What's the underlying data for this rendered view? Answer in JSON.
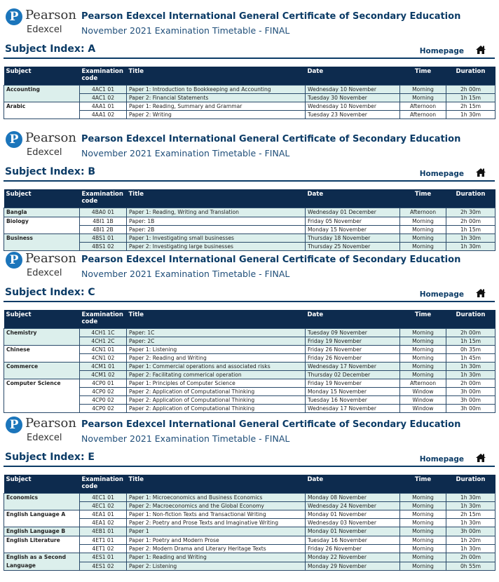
{
  "header": {
    "brand": "Pearson",
    "sub": "Edexcel",
    "title": "Pearson Edexcel International General Certificate of Secondary Education",
    "subtitle": "November 2021 Examination Timetable - FINAL",
    "homepage": "Homepage",
    "columns": [
      "Subject",
      "Examination code",
      "Title",
      "Date",
      "Time",
      "Duration"
    ]
  },
  "sections": [
    {
      "index": "Subject Index: A",
      "groups": [
        {
          "subject": "Accounting",
          "papers": [
            [
              "4AC1 01",
              "Paper 1: Introduction to Bookkeeping and Accounting",
              "Wednesday 10 November",
              "Morning",
              "2h 00m"
            ],
            [
              "4AC1 02",
              "Paper 2: Financial Statements",
              "Tuesday 30 November",
              "Morning",
              "1h 15m"
            ]
          ]
        },
        {
          "subject": "Arabic",
          "papers": [
            [
              "4AA1 01",
              "Paper 1: Reading, Summary and Grammar",
              "Wednesday 10 November",
              "Afternoon",
              "2h 15m"
            ],
            [
              "4AA1 02",
              "Paper 2: Writing",
              "Tuesday 23 November",
              "Afternoon",
              "1h 30m"
            ]
          ]
        }
      ]
    },
    {
      "index": "Subject Index: B",
      "groups": [
        {
          "subject": "Bangla",
          "papers": [
            [
              "4BA0 01",
              "Paper 1: Reading, Writing and Translation",
              "Wednesday 01 December",
              "Afternoon",
              "2h 30m"
            ]
          ]
        },
        {
          "subject": "Biology",
          "papers": [
            [
              "4BI1 1B",
              "Paper: 1B",
              "Friday 05 November",
              "Morning",
              "2h 00m"
            ],
            [
              "4BI1 2B",
              "Paper: 2B",
              "Monday 15 November",
              "Morning",
              "1h 15m"
            ]
          ]
        },
        {
          "subject": "Business",
          "papers": [
            [
              "4BS1 01",
              "Paper 1: Investigating small businesses",
              "Thursday 18 November",
              "Morning",
              "1h 30m"
            ],
            [
              "4BS1 02",
              "Paper 2: Investigating large businesses",
              "Thursday 25 November",
              "Morning",
              "1h 30m"
            ]
          ]
        }
      ]
    },
    {
      "index": "Subject Index: C",
      "groups": [
        {
          "subject": "Chemistry",
          "papers": [
            [
              "4CH1 1C",
              "Paper: 1C",
              "Tuesday 09 November",
              "Morning",
              "2h 00m"
            ],
            [
              "4CH1 2C",
              "Paper: 2C",
              "Friday 19 November",
              "Morning",
              "1h 15m"
            ]
          ]
        },
        {
          "subject": "Chinese",
          "papers": [
            [
              "4CN1 01",
              "Paper 1: Listening",
              "Friday 26 November",
              "Morning",
              "0h 35m"
            ],
            [
              "4CN1 02",
              "Paper 2: Reading and Writing",
              "Friday 26 November",
              "Morning",
              "1h 45m"
            ]
          ]
        },
        {
          "subject": "Commerce",
          "papers": [
            [
              "4CM1 01",
              "Paper 1: Commercial operations and associated risks",
              "Wednesday 17 November",
              "Morning",
              "1h 30m"
            ],
            [
              "4CM1 02",
              "Paper 2: Facilitating commerical operation",
              "Thursday 02 December",
              "Morning",
              "1h 30m"
            ]
          ]
        },
        {
          "subject": "Computer Science",
          "papers": [
            [
              "4CP0 01",
              "Paper 1: Principles of Computer Science",
              "Friday 19 November",
              "Afternoon",
              "2h 00m"
            ],
            [
              "4CP0 02",
              "Paper 2: Application of Computational Thinking",
              "Monday 15 November",
              "Window",
              "3h 00m"
            ],
            [
              "4CP0 02",
              "Paper 2: Application of Computational Thinking",
              "Tuesday 16 November",
              "Window",
              "3h 00m"
            ],
            [
              "4CP0 02",
              "Paper 2: Application of Computational Thinking",
              "Wednesday 17 November",
              "Window",
              "3h 00m"
            ]
          ]
        }
      ]
    },
    {
      "index": "Subject Index: E",
      "groups": [
        {
          "subject": "Economics",
          "papers": [
            [
              "4EC1 01",
              "Paper 1: Microeconomics and Business Economics",
              "Monday 08 November",
              "Morning",
              "1h 30m"
            ],
            [
              "4EC1 02",
              "Paper 2: Macroeconomics and the Global Economy",
              "Wednesday 24 November",
              "Morning",
              "1h 30m"
            ]
          ]
        },
        {
          "subject": "English Language A",
          "papers": [
            [
              "4EA1 01",
              "Paper 1: Non-fiction Texts and Transactional Writing",
              "Monday 01 November",
              "Morning",
              "2h 15m"
            ],
            [
              "4EA1 02",
              "Paper 2: Poetry and Prose Texts and Imaginative Writing",
              "Wednesday 03 November",
              "Morning",
              "1h 30m"
            ]
          ]
        },
        {
          "subject": "English Language B",
          "papers": [
            [
              "4EB1 01",
              "Paper 1",
              "Monday 01 November",
              "Morning",
              "3h 00m"
            ]
          ]
        },
        {
          "subject": "English Literature",
          "papers": [
            [
              "4ET1 01",
              "Paper 1: Poetry and Modern Prose",
              "Tuesday 16 November",
              "Morning",
              "1h 20m"
            ],
            [
              "4ET1 02",
              "Paper 2: Modern Drama and Literary Heritage Texts",
              "Friday 26 November",
              "Morning",
              "1h 30m"
            ]
          ]
        },
        {
          "subject": "English as a Second Language",
          "papers": [
            [
              "4ES1 01",
              "Paper 1: Reading and Writing",
              "Monday 22 November",
              "Morning",
              "2h 00m"
            ],
            [
              "4ES1 02",
              "Paper 2: Listening",
              "Monday 29 November",
              "Morning",
              "0h 55m"
            ]
          ]
        }
      ]
    }
  ]
}
